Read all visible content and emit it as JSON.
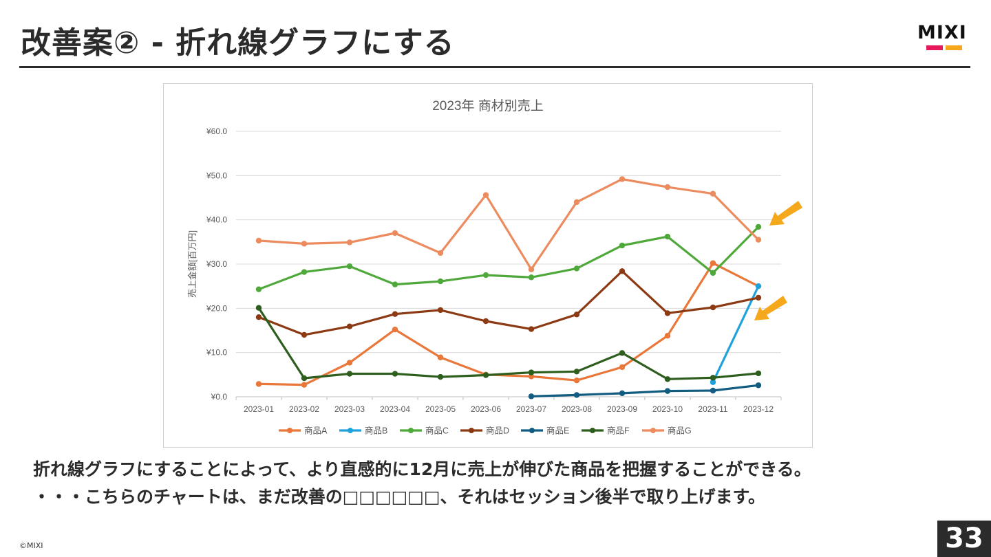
{
  "slide": {
    "title": "改善案② - 折れ線グラフにする",
    "logo_text": "MIXI",
    "caption_line1": "折れ線グラフにすることによって、より直感的に12月に売上が伸びた商品を把握することができる。",
    "caption_line2": "・・・こちらのチャートは、まだ改善の□□□□□□、それはセッション後半で取り上げます。",
    "copyright": "©MIXI",
    "page_number": "33"
  },
  "colors": {
    "title_rule": "#2b2b2b",
    "logo_pink": "#e5185b",
    "logo_orange": "#f5a81c",
    "arrow": "#f5a81c"
  },
  "chart_data": {
    "type": "line",
    "title": "2023年 商材別売上",
    "xlabel": "",
    "ylabel": "売上金額[百万円]",
    "ylim": [
      0,
      60
    ],
    "y_ticks": [
      0,
      10,
      20,
      30,
      40,
      50,
      60
    ],
    "y_tick_labels": [
      "¥0.0",
      "¥10.0",
      "¥20.0",
      "¥30.0",
      "¥40.0",
      "¥50.0",
      "¥60.0"
    ],
    "grid": true,
    "legend_position": "bottom",
    "categories": [
      "2023-01",
      "2023-02",
      "2023-03",
      "2023-04",
      "2023-05",
      "2023-06",
      "2023-07",
      "2023-08",
      "2023-09",
      "2023-10",
      "2023-11",
      "2023-12"
    ],
    "series": [
      {
        "name": "商品A",
        "color": "#e9773a",
        "values": [
          2.9,
          2.7,
          7.7,
          15.2,
          8.9,
          5.0,
          4.6,
          3.7,
          6.7,
          13.8,
          30.2,
          25.0
        ]
      },
      {
        "name": "商品B",
        "color": "#1ea2dc",
        "values": [
          null,
          null,
          null,
          null,
          null,
          null,
          null,
          null,
          null,
          null,
          3.3,
          25.0
        ]
      },
      {
        "name": "商品C",
        "color": "#4fa83a",
        "values": [
          24.3,
          28.2,
          29.5,
          25.4,
          26.1,
          27.5,
          27.0,
          29.0,
          34.2,
          36.2,
          28.0,
          38.4
        ]
      },
      {
        "name": "商品D",
        "color": "#8c3a14",
        "values": [
          18.0,
          14.0,
          15.9,
          18.7,
          19.6,
          17.1,
          15.3,
          18.6,
          28.4,
          18.9,
          20.2,
          22.4
        ]
      },
      {
        "name": "商品E",
        "color": "#125c82",
        "values": [
          null,
          null,
          null,
          null,
          null,
          null,
          0.1,
          0.4,
          0.8,
          1.3,
          1.4,
          2.6
        ]
      },
      {
        "name": "商品F",
        "color": "#2d5e1e",
        "values": [
          20.1,
          4.2,
          5.2,
          5.2,
          4.5,
          4.9,
          5.5,
          5.7,
          9.9,
          4.0,
          4.3,
          5.3
        ]
      },
      {
        "name": "商品G",
        "color": "#ec8b5e",
        "values": [
          35.3,
          34.6,
          34.9,
          37.0,
          32.5,
          45.6,
          28.8,
          44.0,
          49.2,
          47.4,
          45.9,
          35.5
        ]
      }
    ]
  }
}
